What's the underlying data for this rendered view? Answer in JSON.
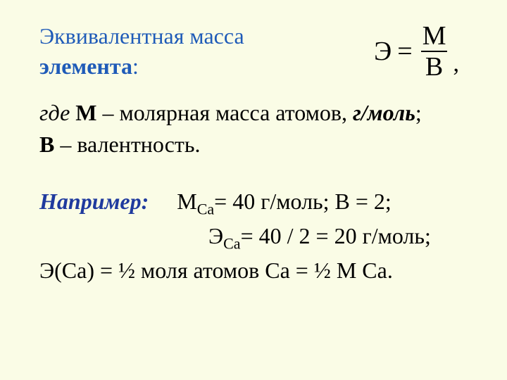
{
  "colors": {
    "background": "#fafce6",
    "heading": "#1f5bb8",
    "body": "#000000",
    "example_label": "#1f3a9e"
  },
  "typography": {
    "font_family": "Times New Roman",
    "heading_size_pt": 24,
    "body_size_pt": 24,
    "formula_size_pt": 28
  },
  "heading": {
    "line1": "Эквивалентная масса",
    "line2_prefix": "элемента",
    "line2_suffix": ":"
  },
  "formula": {
    "lhs": "Э",
    "eq": "=",
    "numerator": "М",
    "denominator": "В",
    "trailing": ","
  },
  "definition": {
    "where": "где",
    "m_symbol": "М",
    "m_text": " – молярная масса атомов, ",
    "m_unit": "г/моль",
    "m_semicolon": ";",
    "b_symbol": "В",
    "b_text": " – валентность."
  },
  "example": {
    "label": "Например:",
    "line1_pre": "М",
    "line1_sub": "Ca",
    "line1_post": "= 40 г/моль; В = 2;",
    "line2_pre": "Э",
    "line2_sub": "Ca",
    "line2_post": "= 40 / 2 = 20 г/моль;",
    "line3": "Э(Ca) = ½ моля атомов Ca = ½ M Ca."
  }
}
